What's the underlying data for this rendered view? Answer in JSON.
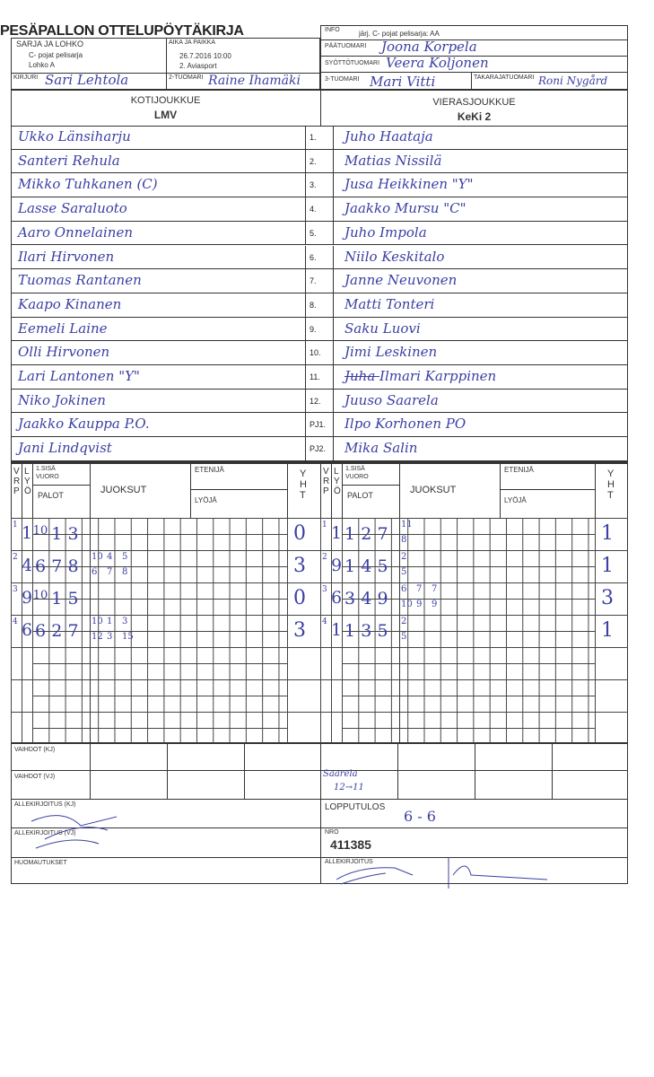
{
  "title": "PESÄPALLON OTTELUPÖYTÄKIRJA",
  "header": {
    "series_label": "SARJA JA LOHKO",
    "series_value_1": "C- pojat pelisarja",
    "series_value_2": "Lohko A",
    "time_place_label": "AIKA JA PAIKKA",
    "time_value": "26.7.2016 10:00",
    "place_value": "2. Aviasport",
    "scorer_label": "KIRJURI",
    "scorer": "Sari Lehtola",
    "umpire2_label": "2-TUOMARI",
    "umpire2": "Raine Ihamäki",
    "info_label": "INFO",
    "info_value": "järj. C- pojat pelisarja: AA",
    "head_umpire_label": "PÄÄTUOMARI",
    "head_umpire": "Joona Korpela",
    "pitch_umpire_label": "SYÖTTÖTUOMARI",
    "pitch_umpire": "Veera Koljonen",
    "umpire3_label": "3-TUOMARI",
    "umpire3": "Mari Vitti",
    "back_umpire_label": "TAKARAJATUOMARI",
    "back_umpire": "Roni Nygård"
  },
  "home": {
    "label": "KOTIJOUKKUE",
    "team": "LMV",
    "players": [
      "Ukko Länsiharju",
      "Santeri Rehula",
      "Mikko Tuhkanen (C)",
      "Lasse Saraluoto",
      "Aaro Onnelainen",
      "Ilari Hirvonen",
      "Tuomas Rantanen",
      "Kaapo Kinanen",
      "Eemeli Laine",
      "Olli Hirvonen",
      "Lari Lantonen \"Y\"",
      "Niko Jokinen",
      "Jaakko Kauppa P.O.",
      "Jani Lindqvist"
    ]
  },
  "away": {
    "label": "VIERASJOUKKUE",
    "team": "KeKi 2",
    "players": [
      "Juho Haataja",
      "Matias Nissilä",
      "Jusa Heikkinen \"Y\"",
      "Jaakko Mursu \"C\"",
      "Juho Impola",
      "Niilo Keskitalo",
      "Janne Neuvonen",
      "Matti Tonteri",
      "Saku Luovi",
      "Jimi Leskinen",
      "Ilmari Karppinen",
      "Juuso Saarela",
      "Ilpo Korhonen PO",
      "Mika Salin"
    ],
    "struck_prefix": "Juha"
  },
  "numbers": [
    "1.",
    "2.",
    "3.",
    "4.",
    "5.",
    "6.",
    "7.",
    "8.",
    "9.",
    "10.",
    "11.",
    "12.",
    "PJ1.",
    "PJ2."
  ],
  "score_headers": {
    "vrp": "V R P",
    "lyo": "L Y Ö",
    "first_inning": "1.SISÄ VUORO",
    "palot": "PALOT",
    "juoksut": "JUOKSUT",
    "etenija": "ETENIJÄ",
    "lyoja": "LYÖJÄ",
    "yht": "Y H T"
  },
  "innings_home": [
    {
      "vrp": "1",
      "lyo": "1",
      "palot": [
        "10",
        "1",
        "3"
      ],
      "etenija": [],
      "lyoja": [],
      "yht": "0"
    },
    {
      "vrp": "2",
      "lyo": "4",
      "palot": [
        "6",
        "7",
        "8"
      ],
      "etenija": [
        "10",
        "4",
        "5"
      ],
      "lyoja": [
        "6",
        "7",
        "8"
      ],
      "yht": "3"
    },
    {
      "vrp": "3",
      "lyo": "9",
      "palot": [
        "10",
        "1",
        "5"
      ],
      "etenija": [],
      "lyoja": [],
      "yht": "0"
    },
    {
      "vrp": "4",
      "lyo": "6",
      "palot": [
        "6",
        "2",
        "7"
      ],
      "etenija": [
        "10",
        "1",
        "3"
      ],
      "lyoja": [
        "12",
        "3",
        "15"
      ],
      "yht": "3"
    }
  ],
  "innings_away": [
    {
      "vrp": "1",
      "lyo": "1",
      "palot": [
        "1",
        "2",
        "7"
      ],
      "etenija": [
        "11"
      ],
      "lyoja": [
        "8"
      ],
      "yht": "1"
    },
    {
      "vrp": "2",
      "lyo": "9",
      "palot": [
        "1",
        "4",
        "5"
      ],
      "etenija": [
        "2"
      ],
      "lyoja": [
        "5"
      ],
      "yht": "1"
    },
    {
      "vrp": "3",
      "lyo": "6",
      "palot": [
        "3",
        "4",
        "9"
      ],
      "etenija": [
        "6",
        "7",
        "7"
      ],
      "lyoja": [
        "10",
        "9",
        "9"
      ],
      "yht": "3"
    },
    {
      "vrp": "4",
      "lyo": "1",
      "palot": [
        "1",
        "3",
        "5"
      ],
      "etenija": [
        "2"
      ],
      "lyoja": [
        "5"
      ],
      "yht": "1"
    }
  ],
  "footer": {
    "subs_home_label": "VAIHDOT (KJ)",
    "subs_away_label": "VAIHDOT (VJ)",
    "subs_away_note_1": "Saarela",
    "subs_away_note_2": "12→11",
    "sign_home_label": "ALLEKIRJOITUS (KJ)",
    "sign_away_label": "ALLEKIRJOITUS (VJ)",
    "notes_label": "HUOMAUTUKSET",
    "final_label": "LOPPUTULOS",
    "final_score": "6 - 6",
    "nro_label": "NRO",
    "nro": "411385",
    "sign_label": "ALLEKIRJOITUS"
  },
  "colors": {
    "ink": "#3b40a3",
    "print": "#333333"
  }
}
